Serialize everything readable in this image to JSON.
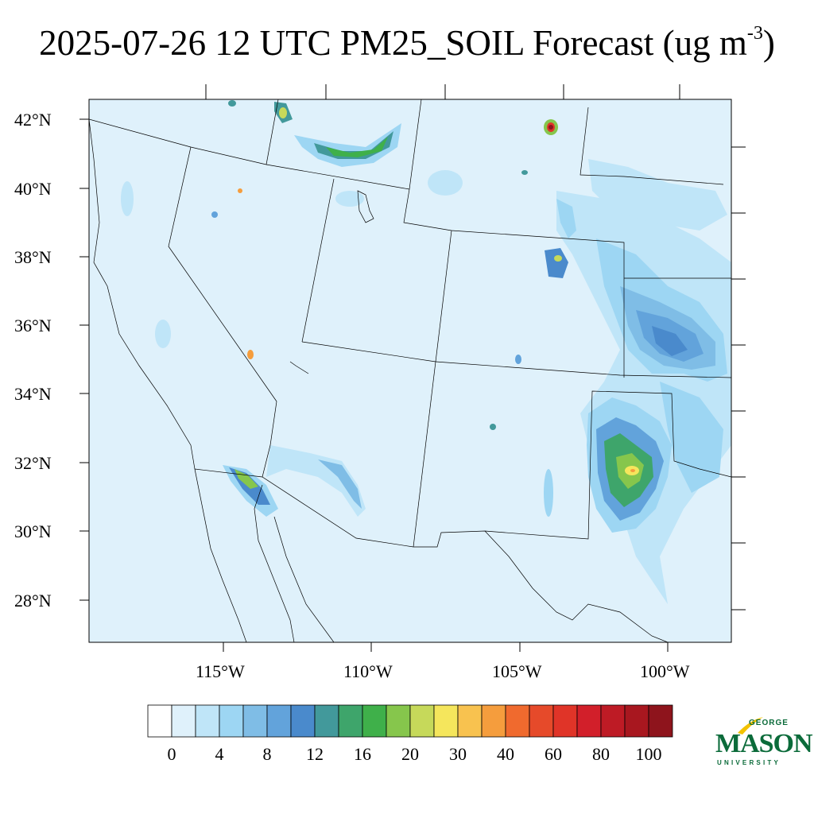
{
  "title": {
    "text": "2025-07-26 12 UTC PM25_SOIL Forecast (ug m",
    "superscript": "-3",
    "close": ")"
  },
  "map": {
    "latitude_labels": [
      "42°N",
      "40°N",
      "38°N",
      "36°N",
      "34°N",
      "32°N",
      "30°N",
      "28°N"
    ],
    "longitude_labels": [
      "115°W",
      "110°W",
      "105°W",
      "100°W"
    ],
    "background_color": "#dff1fb",
    "boundary_color": "#000000"
  },
  "colorbar": {
    "labels": [
      "0",
      "4",
      "8",
      "12",
      "16",
      "20",
      "30",
      "40",
      "60",
      "80",
      "100"
    ],
    "colors": [
      "#ffffff",
      "#dff1fb",
      "#bfe5f8",
      "#9dd6f3",
      "#7fbde6",
      "#62a3db",
      "#4a8acc",
      "#42999b",
      "#3ea56b",
      "#3fb04a",
      "#86c64c",
      "#c6d95a",
      "#f5e65c",
      "#f8c24f",
      "#f59d3d",
      "#f06a2e",
      "#e64a2a",
      "#e03428",
      "#d21f2a",
      "#be1b25",
      "#a8171f",
      "#8e141c"
    ]
  },
  "logo": {
    "line1": "GEORGE",
    "line2": "MASON",
    "line3": "UNIVERSITY",
    "color": "#0b6b3a",
    "accent": "#f2c200"
  }
}
